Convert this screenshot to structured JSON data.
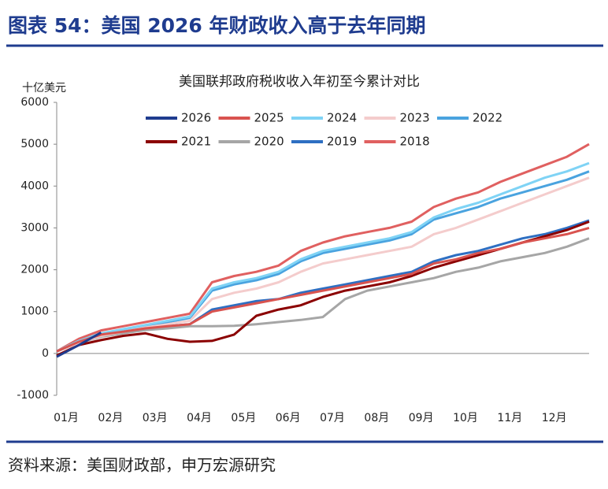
{
  "header_title": "图表 54：美国 2026 年财政收入高于去年同期",
  "source": "资料来源：美国财政部，申万宏源研究",
  "chart_data": {
    "type": "line",
    "title": "美国联邦政府税收收入年初至今累计对比",
    "y_label": "十亿美元",
    "categories": [
      "01月",
      null,
      "02月",
      null,
      "03月",
      null,
      "04月",
      null,
      "05月",
      null,
      "06月",
      null,
      "07月",
      null,
      "08月",
      null,
      "09月",
      null,
      "10月",
      null,
      "11月",
      null,
      "12月",
      null,
      null
    ],
    "ylim": [
      -1000,
      6000
    ],
    "yticks": [
      -1000,
      0,
      1000,
      2000,
      3000,
      4000,
      5000,
      6000
    ],
    "grid": false,
    "series": [
      {
        "name": "2026",
        "color": "#1f3c8f",
        "values": [
          -80,
          200,
          500,
          null,
          null,
          null,
          null,
          null,
          null,
          null,
          null,
          null,
          null,
          null,
          null,
          null,
          null,
          null,
          null,
          null,
          null,
          null,
          null,
          null,
          null
        ]
      },
      {
        "name": "2025",
        "color": "#d9534f",
        "values": [
          50,
          280,
          450,
          520,
          600,
          650,
          700,
          1000,
          1100,
          1200,
          1300,
          1400,
          1500,
          1600,
          1700,
          1800,
          1900,
          2150,
          2250,
          2400,
          2500,
          2650,
          2750,
          2850,
          3000
        ]
      },
      {
        "name": "2024",
        "color": "#7fd3f5",
        "values": [
          50,
          300,
          480,
          580,
          680,
          780,
          880,
          1550,
          1700,
          1800,
          1950,
          2250,
          2450,
          2550,
          2650,
          2750,
          2900,
          3250,
          3450,
          3600,
          3800,
          4000,
          4200,
          4350,
          4550
        ]
      },
      {
        "name": "2023",
        "color": "#f4cccc",
        "values": [
          50,
          250,
          420,
          520,
          620,
          700,
          780,
          1300,
          1450,
          1550,
          1700,
          1950,
          2150,
          2250,
          2350,
          2450,
          2550,
          2850,
          3000,
          3200,
          3400,
          3600,
          3800,
          4000,
          4200
        ]
      },
      {
        "name": "2022",
        "color": "#4aa3df",
        "values": [
          50,
          280,
          450,
          550,
          650,
          750,
          850,
          1500,
          1650,
          1750,
          1900,
          2200,
          2400,
          2500,
          2600,
          2700,
          2850,
          3200,
          3350,
          3500,
          3700,
          3850,
          4000,
          4150,
          4350
        ]
      },
      {
        "name": "2021",
        "color": "#8b0000",
        "values": [
          -50,
          200,
          320,
          420,
          480,
          350,
          280,
          300,
          450,
          900,
          1050,
          1150,
          1350,
          1500,
          1600,
          1700,
          1850,
          2050,
          2200,
          2350,
          2500,
          2650,
          2800,
          2950,
          3150
        ]
      },
      {
        "name": "2020",
        "color": "#a6a6a6",
        "values": [
          50,
          250,
          400,
          480,
          560,
          600,
          650,
          650,
          660,
          700,
          750,
          800,
          870,
          1300,
          1500,
          1600,
          1700,
          1800,
          1950,
          2050,
          2200,
          2300,
          2400,
          2550,
          2750
        ]
      },
      {
        "name": "2019",
        "color": "#2e6fc2",
        "values": [
          50,
          250,
          430,
          520,
          600,
          650,
          700,
          1050,
          1150,
          1250,
          1300,
          1450,
          1550,
          1650,
          1750,
          1850,
          1950,
          2200,
          2350,
          2450,
          2600,
          2750,
          2850,
          3000,
          3180
        ]
      },
      {
        "name": "2018",
        "color": "#e06060",
        "values": [
          50,
          350,
          550,
          650,
          750,
          850,
          950,
          1700,
          1850,
          1950,
          2100,
          2450,
          2650,
          2800,
          2900,
          3000,
          3150,
          3500,
          3700,
          3850,
          4100,
          4300,
          4500,
          4700,
          5000
        ]
      }
    ]
  }
}
